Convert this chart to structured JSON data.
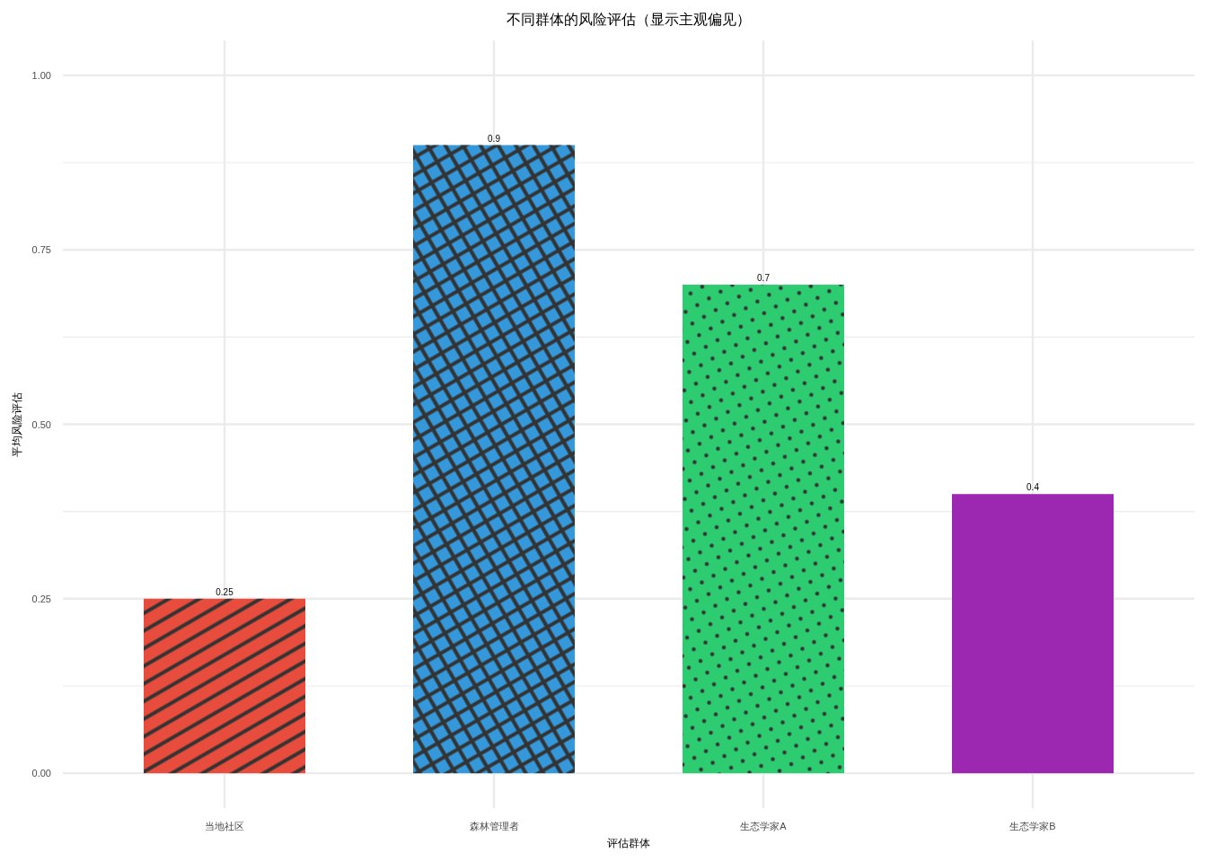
{
  "chart_data": {
    "type": "bar",
    "title": "不同群体的风险评估（显示主观偏见）",
    "xlabel": "评估群体",
    "ylabel": "平均风险评估",
    "categories": [
      "当地社区",
      "森林管理者",
      "生态学家A",
      "生态学家B"
    ],
    "values": [
      0.25,
      0.9,
      0.7,
      0.4
    ],
    "colors": [
      "#e74c3c",
      "#3498db",
      "#2ecc71",
      "#9c27b0"
    ],
    "ylim": [
      -0.05,
      1.05
    ],
    "yticks": [
      {
        "value": 0,
        "label": "0.00"
      },
      {
        "value": 0.125,
        "label": null
      },
      {
        "value": 0.25,
        "label": "0.25"
      },
      {
        "value": 0.375,
        "label": null
      },
      {
        "value": 0.5,
        "label": "0.50"
      },
      {
        "value": 0.625,
        "label": null
      },
      {
        "value": 0.75,
        "label": "0.75"
      },
      {
        "value": 0.875,
        "label": null
      },
      {
        "value": 1,
        "label": "1.00"
      }
    ],
    "grid": true,
    "data_labels": true
  }
}
